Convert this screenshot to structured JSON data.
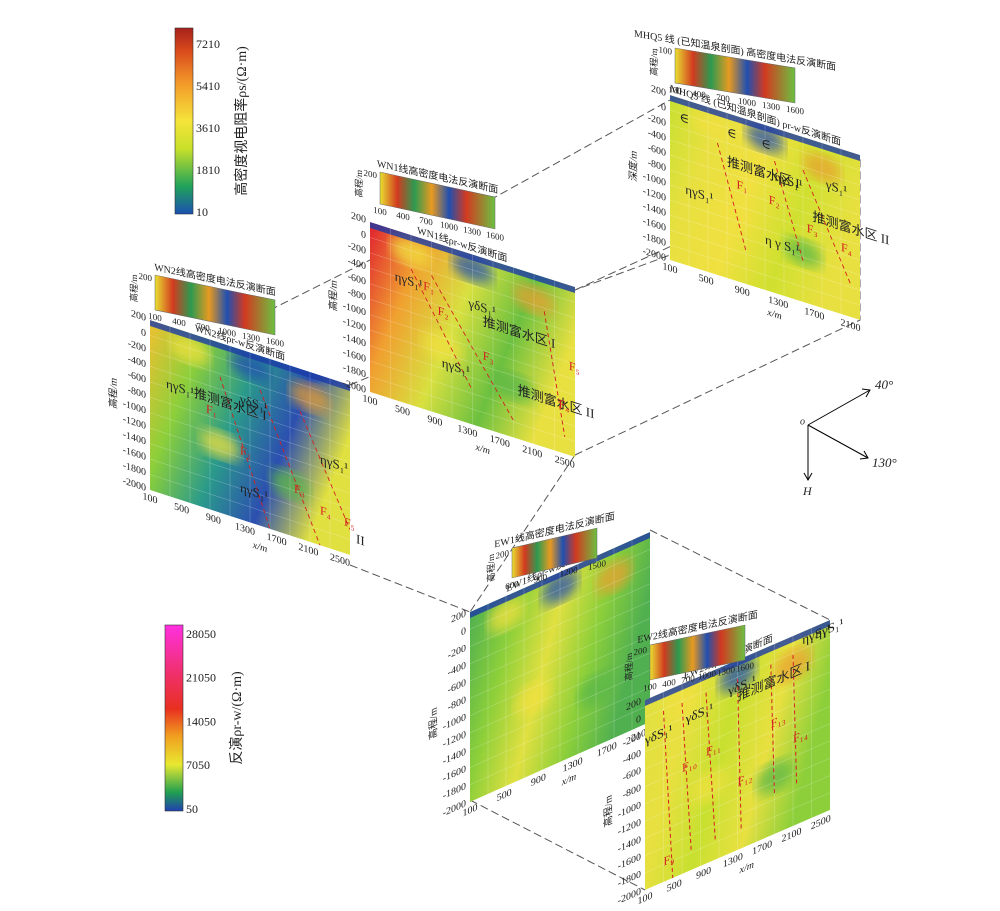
{
  "colorbar_top": {
    "title": "高密度视电阻率ρs/(Ω·m)",
    "ticks": [
      "7210",
      "5410",
      "3610",
      "1810",
      "10"
    ]
  },
  "colorbar_bottom": {
    "title": "反演ρr-w/(Ω·m)",
    "ticks": [
      "28050",
      "21050",
      "14050",
      "7050",
      "50"
    ]
  },
  "compass": {
    "origin": "o",
    "east": "40°",
    "south": "130°",
    "down": "H"
  },
  "sections": [
    {
      "title": "WN2线高密度电法反演断面",
      "title_y_label": "高程/m",
      "title_y_ticks": [
        "200"
      ],
      "title_x_ticks": [
        "100",
        "400",
        "700",
        "1000",
        "1300",
        "1600"
      ],
      "subtitle": "WN2线ρr-w反演断面",
      "y_label": "高程/m",
      "x_label": "x/m",
      "y_ticks": [
        "200",
        "0",
        "-200",
        "-400",
        "-600",
        "-800",
        "-1000",
        "-1200",
        "-1400",
        "-1600",
        "-1800",
        "-2000"
      ],
      "x_ticks": [
        "100",
        "500",
        "900",
        "1300",
        "1700",
        "2100",
        "2500"
      ],
      "annotations": [
        "ηγS₁¹",
        "推测富水区 I",
        "γδS₁¹",
        "ηγS₁¹",
        "F₁",
        "F₂",
        "F₃",
        "F₄",
        "F₅",
        "II",
        "ηγS₁¹"
      ]
    },
    {
      "title": "WN1线高密度电法反演断面",
      "title_y_label": "高程/m",
      "title_y_ticks": [
        "200"
      ],
      "title_x_ticks": [
        "100",
        "400",
        "700",
        "1000",
        "1300",
        "1600"
      ],
      "subtitle": "WN1线ρr-w反演断面",
      "y_label": "高程/m",
      "x_label": "x/m",
      "y_ticks": [
        "200",
        "0",
        "-200",
        "-400",
        "-600",
        "-800",
        "-1000",
        "-1200",
        "-1400",
        "-1600",
        "-1800",
        "-2000"
      ],
      "x_ticks": [
        "100",
        "500",
        "900",
        "1300",
        "1700",
        "2100",
        "2500"
      ],
      "annotations": [
        "ηγS₁¹",
        "F₁",
        "F₂",
        "推测富水区 I",
        "γδS₁¹",
        "F₃",
        "ηγS₁¹",
        "推测富水区 II",
        "F₄",
        "F₅"
      ]
    },
    {
      "title": "MHQ5 线 (已知温泉剖面) 高密度电法反演断面",
      "title_y_label": "高程/m",
      "title_y_ticks": [
        "-100"
      ],
      "title_x_ticks": [
        "100",
        "400",
        "700",
        "1000",
        "1300",
        "1600"
      ],
      "subtitle": "MHQ5 线 (已知温泉剖面) ρr-w反演断面",
      "y_label": "深度/m",
      "x_label": "x/m",
      "y_ticks": [
        "200",
        "0",
        "-200",
        "-400",
        "-600",
        "-800",
        "-1000",
        "-1200",
        "-1400",
        "-1600",
        "-1800",
        "-2000"
      ],
      "x_ticks": [
        "100",
        "500",
        "900",
        "1300",
        "1700",
        "2100"
      ],
      "annotations": [
        "∈",
        "∈",
        "∈",
        "ηγS₁¹",
        "推测富水区 I",
        "γS₁¹",
        "F₁",
        "F₂",
        "F₃",
        "F₄",
        "推测富水区 II",
        "ηγS₁¹",
        "η γ S₁¹"
      ]
    },
    {
      "title": "EW1线高密度电法反演断面",
      "title_y_label": "高程/m",
      "title_y_ticks": [
        "200"
      ],
      "title_x_ticks": [
        "600",
        "900",
        "1200",
        "1500"
      ],
      "subtitle": "EW1线ρr-w反演断面",
      "y_label": "高程/m",
      "x_label": "x/m",
      "y_ticks": [
        "200",
        "0",
        "-200",
        "-400",
        "-600",
        "-800",
        "-1000",
        "-1200",
        "-1400",
        "-1600",
        "-1800",
        "-2000"
      ],
      "x_ticks": [
        "100",
        "500",
        "900",
        "1300",
        "1700",
        "2100"
      ],
      "annotations": []
    },
    {
      "title": "EW2线高密度电法反演断面",
      "title_y_label": "高程/m",
      "title_y_ticks": [
        "200"
      ],
      "title_x_ticks": [
        "100",
        "400",
        "700",
        "1000",
        "1300",
        "1600"
      ],
      "subtitle": "EW2线ρr-w反演断面",
      "y_label": "高程/m",
      "x_label": "x/m",
      "y_ticks": [
        "200",
        "0",
        "-200",
        "-400",
        "-600",
        "-800",
        "-1000",
        "-1200",
        "-1400",
        "-1600",
        "-1800",
        "-2000"
      ],
      "x_ticks": [
        "100",
        "500",
        "900",
        "1300",
        "1700",
        "2100",
        "2500"
      ],
      "annotations": [
        "γδS₁¹",
        "γδS₁¹",
        "γδS₁¹",
        "ηγS₁¹",
        "推测富水区 I",
        "F₉",
        "F₁₀",
        "F₁₁",
        "F₁₂",
        "F₁₃",
        "F₁₄",
        "ηγS₁¹"
      ]
    }
  ]
}
